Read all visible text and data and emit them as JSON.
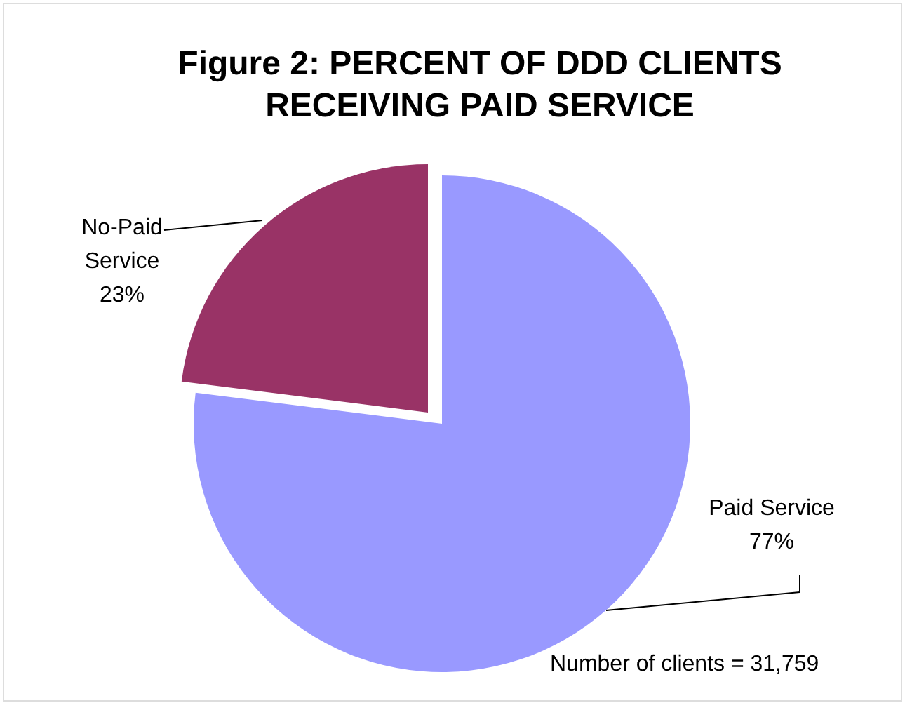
{
  "chart_data": {
    "type": "pie",
    "title": "Figure 2: PERCENT OF DDD CLIENTS RECEIVING PAID SERVICE",
    "categories": [
      "Paid Service",
      "No-Paid Service"
    ],
    "values": [
      77,
      23
    ],
    "colors": [
      "#9999ff",
      "#993366"
    ],
    "value_labels": [
      "77%",
      "23%"
    ],
    "annotations": [
      "Number of clients = 31,759"
    ]
  }
}
